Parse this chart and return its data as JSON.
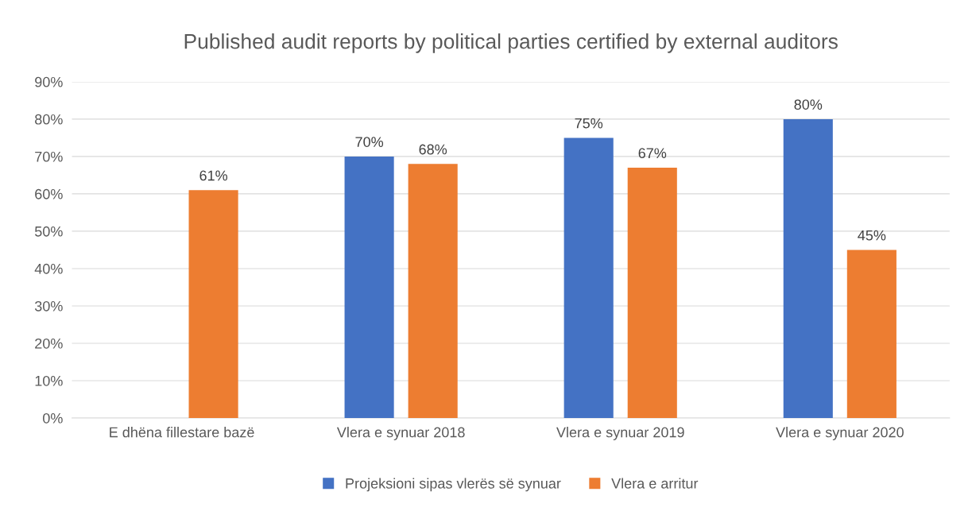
{
  "chart_data": {
    "type": "bar",
    "title": "Published audit reports by political parties certified by external auditors",
    "categories": [
      "E dhëna fillestare bazë",
      "Vlera e synuar 2018",
      "Vlera e synuar 2019",
      "Vlera e synuar 2020"
    ],
    "series": [
      {
        "name": "Projeksioni sipas vlerës së synuar",
        "color": "#4472c4",
        "values": [
          null,
          70,
          75,
          80
        ],
        "value_labels": [
          null,
          "70%",
          "75%",
          "80%"
        ]
      },
      {
        "name": "Vlera e arritur",
        "color": "#ed7d31",
        "values": [
          61,
          68,
          67,
          45
        ],
        "value_labels": [
          "61%",
          "68%",
          "67%",
          "45%"
        ]
      }
    ],
    "ylim": [
      0,
      90
    ],
    "yticks": [
      {
        "value": 0,
        "label": "0%"
      },
      {
        "value": 10,
        "label": "10%"
      },
      {
        "value": 20,
        "label": "20%"
      },
      {
        "value": 30,
        "label": "30%"
      },
      {
        "value": 40,
        "label": "40%"
      },
      {
        "value": 50,
        "label": "50%"
      },
      {
        "value": 60,
        "label": "60%"
      },
      {
        "value": 70,
        "label": "70%"
      },
      {
        "value": 80,
        "label": "80%"
      },
      {
        "value": 90,
        "label": "90%"
      }
    ],
    "grid": "y",
    "legend": "bottom"
  }
}
